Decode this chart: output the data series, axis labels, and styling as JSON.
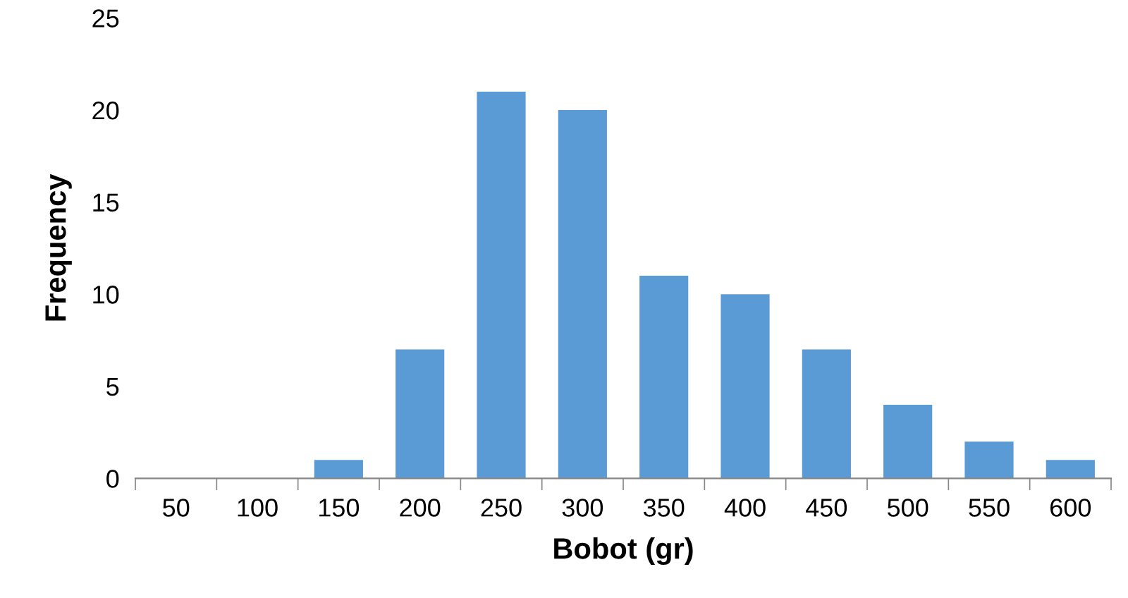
{
  "chart_data": {
    "type": "bar",
    "xlabel": "Bobot (gr)",
    "ylabel": "Frequency",
    "categories": [
      "50",
      "100",
      "150",
      "200",
      "250",
      "300",
      "350",
      "400",
      "450",
      "500",
      "550",
      "600"
    ],
    "values": [
      0,
      0,
      1,
      7,
      21,
      20,
      11,
      10,
      7,
      4,
      2,
      1
    ],
    "color": "#5b9bd5",
    "ylim": [
      0,
      25
    ],
    "yticks": [
      0,
      5,
      10,
      15,
      20,
      25
    ],
    "grid": false,
    "legend": false
  }
}
